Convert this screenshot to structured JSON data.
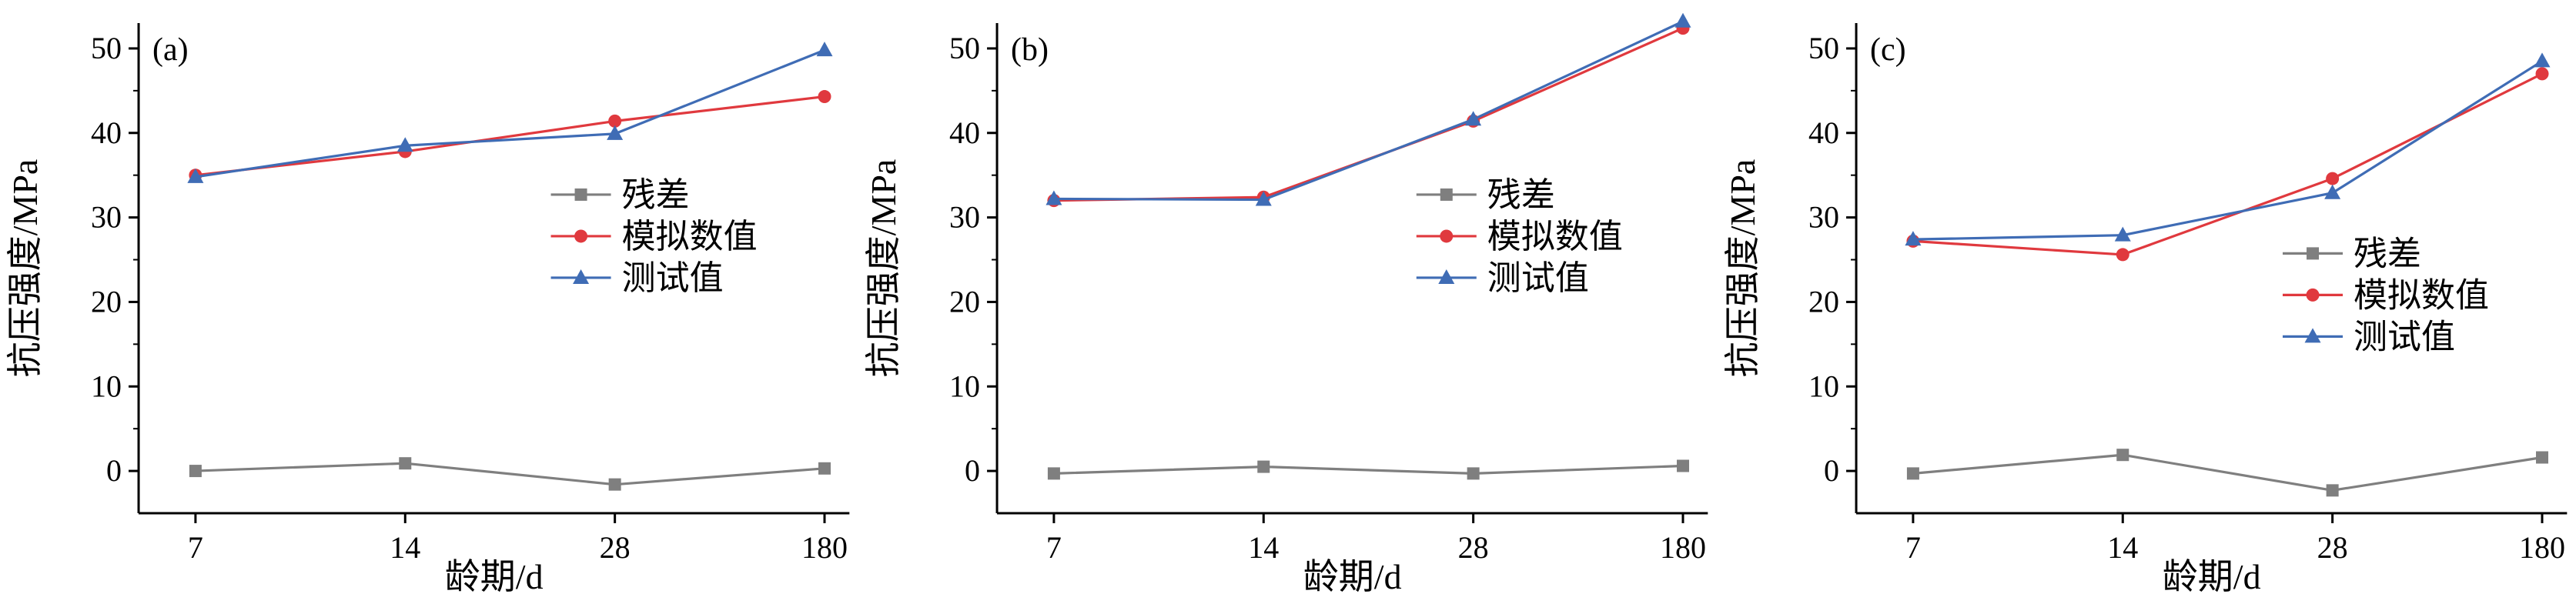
{
  "page": {
    "background": "#ffffff"
  },
  "chart_data": [
    {
      "type": "line",
      "panel_label": "(a)",
      "title": "",
      "xlabel": "龄期/d",
      "ylabel": "抗压强度/MPa",
      "categories": [
        "7",
        "14",
        "28",
        "180"
      ],
      "ylim": [
        -5,
        53
      ],
      "yticks": [
        0,
        10,
        20,
        30,
        40,
        50
      ],
      "grid": false,
      "legend_position": "inside",
      "legend_anchor": {
        "x": 0.58,
        "y": 0.35
      },
      "legend": [
        "残差",
        "模拟数值",
        "测试值"
      ],
      "series": [
        {
          "name": "残差",
          "marker": "square",
          "color": "#7f7f7f",
          "values": [
            0.0,
            0.9,
            -1.6,
            0.3
          ]
        },
        {
          "name": "模拟数值",
          "marker": "circle",
          "color": "#e0393e",
          "values": [
            35.0,
            37.8,
            41.4,
            44.3
          ]
        },
        {
          "name": "测试值",
          "marker": "triangle",
          "color": "#3f6cb5",
          "values": [
            34.8,
            38.5,
            39.9,
            49.8
          ]
        }
      ]
    },
    {
      "type": "line",
      "panel_label": "(b)",
      "title": "",
      "xlabel": "龄期/d",
      "ylabel": "抗压强度/MPa",
      "categories": [
        "7",
        "14",
        "28",
        "180"
      ],
      "ylim": [
        -5,
        53
      ],
      "yticks": [
        0,
        10,
        20,
        30,
        40,
        50
      ],
      "grid": false,
      "legend_position": "inside",
      "legend_anchor": {
        "x": 0.59,
        "y": 0.35
      },
      "legend": [
        "残差",
        "模拟数值",
        "测试值"
      ],
      "series": [
        {
          "name": "残差",
          "marker": "square",
          "color": "#7f7f7f",
          "values": [
            -0.3,
            0.5,
            -0.3,
            0.6
          ]
        },
        {
          "name": "模拟数值",
          "marker": "circle",
          "color": "#e0393e",
          "values": [
            32.0,
            32.4,
            41.4,
            52.4
          ]
        },
        {
          "name": "测试值",
          "marker": "triangle",
          "color": "#3f6cb5",
          "values": [
            32.2,
            32.1,
            41.6,
            53.2
          ]
        }
      ]
    },
    {
      "type": "line",
      "panel_label": "(c)",
      "title": "",
      "xlabel": "龄期/d",
      "ylabel": "抗压强度/MPa",
      "categories": [
        "7",
        "14",
        "28",
        "180"
      ],
      "ylim": [
        -5,
        53
      ],
      "yticks": [
        0,
        10,
        20,
        30,
        40,
        50
      ],
      "grid": false,
      "legend_position": "inside",
      "legend_anchor": {
        "x": 0.6,
        "y": 0.47
      },
      "legend": [
        "残差",
        "模拟数值",
        "测试值"
      ],
      "series": [
        {
          "name": "残差",
          "marker": "square",
          "color": "#7f7f7f",
          "values": [
            -0.3,
            1.9,
            -2.3,
            1.6
          ]
        },
        {
          "name": "模拟数值",
          "marker": "circle",
          "color": "#e0393e",
          "values": [
            27.2,
            25.6,
            34.6,
            47.0
          ]
        },
        {
          "name": "测试值",
          "marker": "triangle",
          "color": "#3f6cb5",
          "values": [
            27.4,
            27.9,
            32.9,
            48.5
          ]
        }
      ]
    }
  ]
}
